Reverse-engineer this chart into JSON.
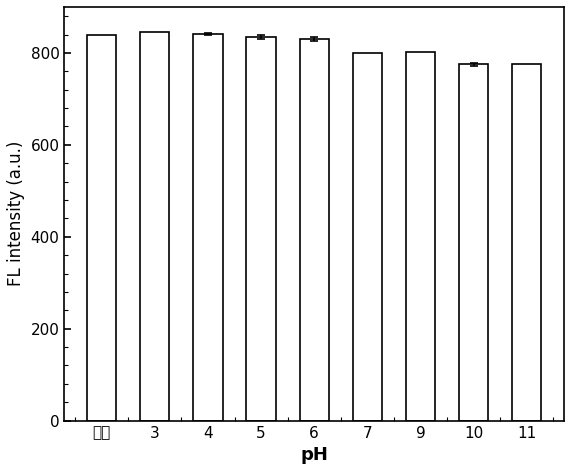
{
  "categories": [
    "空白",
    "3",
    "4",
    "5",
    "6",
    "7",
    "9",
    "10",
    "11"
  ],
  "values": [
    840,
    845,
    842,
    835,
    830,
    800,
    803,
    775,
    775
  ],
  "errors": [
    0,
    0,
    2,
    4,
    4,
    0,
    0,
    4,
    0
  ],
  "bar_color": "#ffffff",
  "bar_edgecolor": "#000000",
  "bar_linewidth": 1.2,
  "xlabel": "pH",
  "ylabel": "FL intensity (a.u.)",
  "ylim": [
    0,
    900
  ],
  "yticks": [
    0,
    200,
    400,
    600,
    800
  ],
  "xlabel_fontsize": 13,
  "ylabel_fontsize": 12,
  "tick_fontsize": 11,
  "bar_width": 0.55,
  "figsize": [
    5.71,
    4.71
  ],
  "dpi": 100,
  "background_color": "#ffffff",
  "spine_linewidth": 1.2,
  "minor_tick_count": 4
}
